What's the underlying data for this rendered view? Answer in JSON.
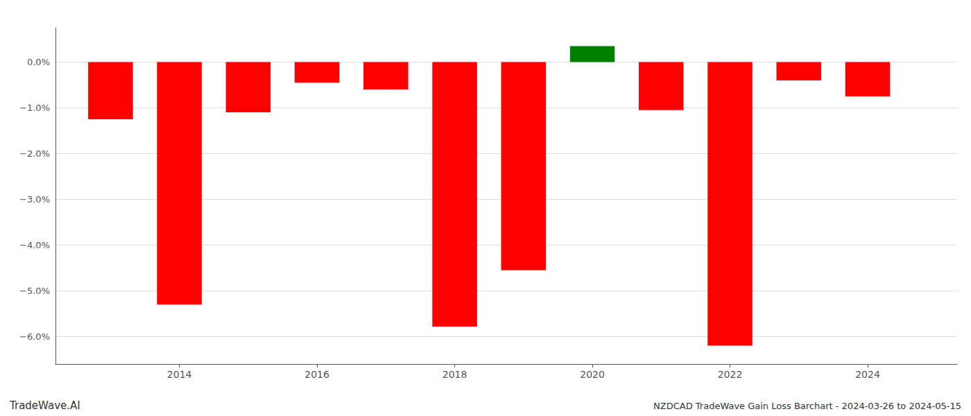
{
  "chart_data": {
    "type": "bar",
    "title": "NZDCAD TradeWave Gain Loss Barchart - 2024-03-26 to 2024-05-15",
    "annotations": [
      "TradeWave.AI"
    ],
    "x": [
      2013,
      2014,
      2015,
      2016,
      2017,
      2018,
      2019,
      2020,
      2021,
      2022,
      2023,
      2024
    ],
    "values": [
      -1.25,
      -5.3,
      -1.1,
      -0.45,
      -0.6,
      -5.78,
      -4.55,
      0.35,
      -1.05,
      -6.2,
      -0.4,
      -0.75
    ],
    "colors": [
      "#ff0000",
      "#ff0000",
      "#ff0000",
      "#ff0000",
      "#ff0000",
      "#ff0000",
      "#ff0000",
      "#008000",
      "#ff0000",
      "#ff0000",
      "#ff0000",
      "#ff0000"
    ],
    "xlim": [
      2012.2,
      2025.3
    ],
    "xticks": [
      2014,
      2016,
      2018,
      2020,
      2022,
      2024
    ],
    "ylim": [
      -6.6,
      0.75
    ],
    "yticks": [
      {
        "value": 0.0,
        "label": "0.0%"
      },
      {
        "value": -1.0,
        "label": "−1.0%"
      },
      {
        "value": -2.0,
        "label": "−2.0%"
      },
      {
        "value": -3.0,
        "label": "−3.0%"
      },
      {
        "value": -4.0,
        "label": "−4.0%"
      },
      {
        "value": -5.0,
        "label": "−5.0%"
      },
      {
        "value": -6.0,
        "label": "−6.0%"
      }
    ],
    "grid": true
  }
}
